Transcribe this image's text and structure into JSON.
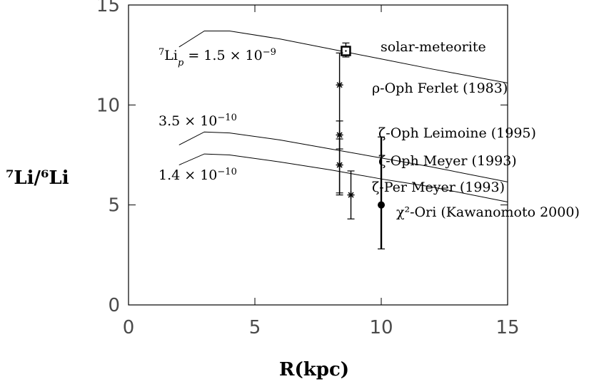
{
  "chart_data": {
    "type": "line",
    "title": "",
    "xlabel": "R(kpc)",
    "ylabel": "⁷Li/⁶Li",
    "xlim": [
      0,
      15
    ],
    "ylim": [
      0,
      15
    ],
    "xticks": [
      0,
      5,
      10,
      15
    ],
    "yticks": [
      0,
      5,
      10,
      15
    ],
    "grid": false,
    "series": [
      {
        "name": "⁷Li_p = 1.5 × 10⁻⁹",
        "label_parts": {
          "pre": "7",
          "base": "Li",
          "sub": "p",
          "mid": " = 1.5 × 10",
          "exp": "−9"
        },
        "x": [
          2,
          3,
          4,
          6,
          8,
          10,
          12,
          15
        ],
        "y": [
          12.9,
          13.7,
          13.7,
          13.3,
          12.8,
          12.3,
          11.8,
          11.1
        ]
      },
      {
        "name": "3.5 × 10⁻¹⁰",
        "label_parts": {
          "pre": "",
          "base": "",
          "sub": "",
          "mid": "3.5 × 10",
          "exp": "−10"
        },
        "x": [
          2,
          3,
          4,
          6,
          8,
          10,
          12,
          15
        ],
        "y": [
          8.0,
          8.65,
          8.6,
          8.25,
          7.8,
          7.35,
          6.9,
          6.15
        ]
      },
      {
        "name": "1.4 × 10⁻¹⁰",
        "label_parts": {
          "pre": "",
          "base": "",
          "sub": "",
          "mid": "1.4 × 10",
          "exp": "−10"
        },
        "x": [
          2,
          3,
          4,
          6,
          8,
          10,
          12,
          15
        ],
        "y": [
          7.0,
          7.55,
          7.5,
          7.15,
          6.75,
          6.3,
          5.9,
          5.15
        ]
      }
    ],
    "points": [
      {
        "label": "solar-meteorite",
        "x": 8.6,
        "y": 12.7,
        "ylow": 12.4,
        "yhigh": 13.1,
        "marker": "square"
      },
      {
        "label": "ρ-Oph Ferlet (1983)",
        "x": 8.35,
        "y": 11.0,
        "ylow": 5.5,
        "yhigh": 12.6,
        "marker": "asterisk"
      },
      {
        "label": "ζ-Oph Leimoine (1995)",
        "x": 8.35,
        "y": 8.5,
        "ylow": 7.8,
        "yhigh": 9.2,
        "marker": "asterisk"
      },
      {
        "label": "ζ-Oph Meyer (1993)",
        "x": 8.35,
        "y": 7.0,
        "ylow": 5.6,
        "yhigh": 8.3,
        "marker": "asterisk"
      },
      {
        "label": "ζ-Per Meyer (1993)",
        "x": 8.8,
        "y": 5.5,
        "ylow": 4.3,
        "yhigh": 6.7,
        "marker": "asterisk"
      },
      {
        "label": "χ²-Ori (Kawanomoto 2000)",
        "x": 10.0,
        "y": 5.0,
        "ylow": 2.8,
        "yhigh": 8.4,
        "marker": "dot"
      }
    ]
  }
}
